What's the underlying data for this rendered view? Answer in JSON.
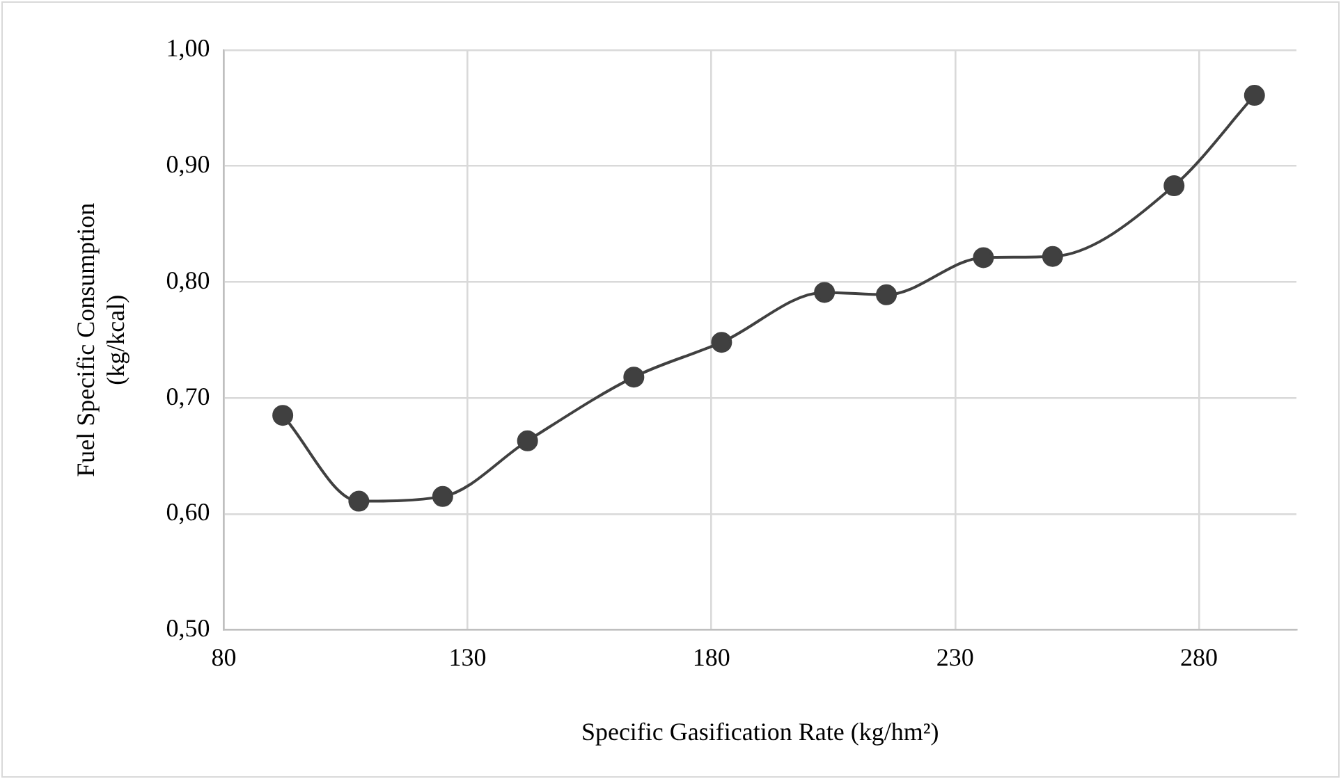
{
  "chart_data": {
    "type": "line",
    "xlabel": "Specific Gasification Rate (kg/hm²)",
    "ylabel": "Fuel Specific Consumption (kg/kcal)",
    "x": [
      92.1,
      107.7,
      124.9,
      142.3,
      164.1,
      182.1,
      203.2,
      215.9,
      235.8,
      250.0,
      274.9,
      291.4
    ],
    "series": [
      {
        "color": "#404040",
        "values": [
          0.685,
          0.611,
          0.615,
          0.663,
          0.718,
          0.748,
          0.791,
          0.789,
          0.821,
          0.822,
          0.883,
          0.961
        ]
      }
    ],
    "xlim": [
      80,
      300
    ],
    "xticks": [
      80,
      130,
      180,
      230,
      280
    ],
    "ylim": [
      0.5,
      1.0
    ],
    "yticks": [
      {
        "value": 0.5,
        "label": "0,50"
      },
      {
        "value": 0.6,
        "label": "0,60"
      },
      {
        "value": 0.7,
        "label": "0,70"
      },
      {
        "value": 0.8,
        "label": "0,80"
      },
      {
        "value": 0.9,
        "label": "0,90"
      },
      {
        "value": 1.0,
        "label": "1,00"
      }
    ],
    "grid": true,
    "legend": false,
    "marker": "circle",
    "line_style": "solid"
  }
}
